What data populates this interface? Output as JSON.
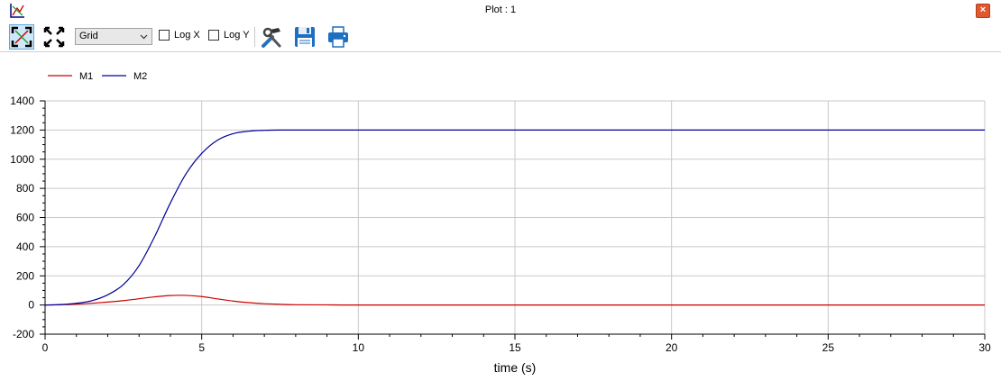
{
  "window": {
    "title": "Plot : 1",
    "close_label": "×"
  },
  "toolbar": {
    "grid_select_value": "Grid",
    "log_x_label": "Log X",
    "log_y_label": "Log Y",
    "icons": [
      "plot-fit-icon",
      "fullscreen-icon",
      "setup-tools-icon",
      "save-icon",
      "print-icon"
    ]
  },
  "colors": {
    "M1": "#cc0000",
    "M2": "#000099",
    "grid": "#c8c8c8"
  },
  "chart_data": {
    "type": "line",
    "title": "",
    "xlabel": "time (s)",
    "ylabel": "",
    "xlim": [
      0,
      30
    ],
    "ylim": [
      -200,
      1400
    ],
    "xticks": [
      0,
      5,
      10,
      15,
      20,
      25,
      30
    ],
    "yticks": [
      -200,
      0,
      200,
      400,
      600,
      800,
      1000,
      1200,
      1400
    ],
    "grid": true,
    "legend": "top-left",
    "series": [
      {
        "name": "M1",
        "color": "#cc0000",
        "x": [
          0,
          0.5,
          1,
          1.5,
          2,
          2.5,
          3,
          3.5,
          4,
          4.5,
          5,
          5.5,
          6,
          6.5,
          7,
          7.5,
          8,
          9,
          10,
          15,
          20,
          25,
          30
        ],
        "y": [
          0,
          2,
          6,
          12,
          20,
          30,
          43,
          56,
          65,
          66,
          58,
          42,
          27,
          16,
          9,
          5,
          2,
          1,
          0,
          0,
          0,
          0,
          0
        ]
      },
      {
        "name": "M2",
        "color": "#000099",
        "x": [
          0,
          0.5,
          1,
          1.5,
          2,
          2.5,
          3,
          3.5,
          4,
          4.5,
          5,
          5.5,
          6,
          6.5,
          7,
          7.5,
          8,
          9,
          10,
          15,
          20,
          25,
          30
        ],
        "y": [
          0,
          3,
          12,
          30,
          70,
          140,
          270,
          470,
          700,
          900,
          1040,
          1130,
          1175,
          1192,
          1198,
          1200,
          1200,
          1200,
          1200,
          1200,
          1200,
          1200,
          1200
        ]
      }
    ]
  }
}
